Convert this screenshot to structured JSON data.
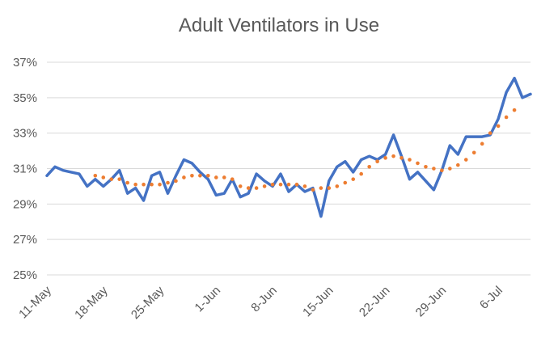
{
  "chart_data": {
    "type": "line",
    "title": "Adult Ventilators in Use",
    "xlabel": "",
    "ylabel": "",
    "ylim": [
      25,
      37
    ],
    "y_ticks": [
      "25%",
      "27%",
      "29%",
      "31%",
      "33%",
      "35%",
      "37%"
    ],
    "x_tick_labels": [
      "11-May",
      "18-May",
      "25-May",
      "1-Jun",
      "8-Jun",
      "15-Jun",
      "22-Jun",
      "29-Jun",
      "6-Jul"
    ],
    "x_start_label": "11-May",
    "grid": true,
    "legend": "none",
    "series": [
      {
        "style": "solid",
        "color": "#4472c4",
        "values": [
          30.6,
          31.1,
          30.9,
          30.8,
          30.7,
          30.0,
          30.4,
          30.0,
          30.4,
          30.9,
          29.6,
          29.9,
          29.2,
          30.6,
          30.8,
          29.6,
          30.6,
          31.5,
          31.3,
          30.8,
          30.4,
          29.5,
          29.6,
          30.4,
          29.4,
          29.6,
          30.7,
          30.3,
          30.0,
          30.7,
          29.7,
          30.1,
          29.7,
          29.9,
          28.3,
          30.3,
          31.1,
          31.4,
          30.8,
          31.5,
          31.7,
          31.5,
          31.8,
          32.9,
          31.7,
          30.4,
          30.8,
          30.3,
          29.8,
          30.9,
          32.3,
          31.8,
          32.8,
          32.8,
          32.8,
          32.9,
          33.8,
          35.3,
          36.1,
          35.0,
          35.2
        ]
      },
      {
        "style": "dotted",
        "color": "#ed7d31",
        "start_index": 6,
        "values": [
          30.6,
          30.5,
          30.4,
          30.4,
          30.2,
          30.1,
          30.1,
          30.1,
          30.1,
          30.2,
          30.3,
          30.5,
          30.6,
          30.6,
          30.6,
          30.5,
          30.5,
          30.4,
          30.0,
          29.9,
          29.9,
          30.0,
          30.1,
          30.1,
          30.1,
          30.1,
          30.0,
          29.8,
          29.9,
          29.9,
          30.0,
          30.2,
          30.4,
          30.7,
          31.1,
          31.4,
          31.6,
          31.7,
          31.6,
          31.5,
          31.3,
          31.1,
          31.0,
          30.9,
          31.0,
          31.2,
          31.5,
          31.9,
          32.4,
          33.0,
          33.4,
          33.9,
          34.3
        ]
      }
    ]
  }
}
